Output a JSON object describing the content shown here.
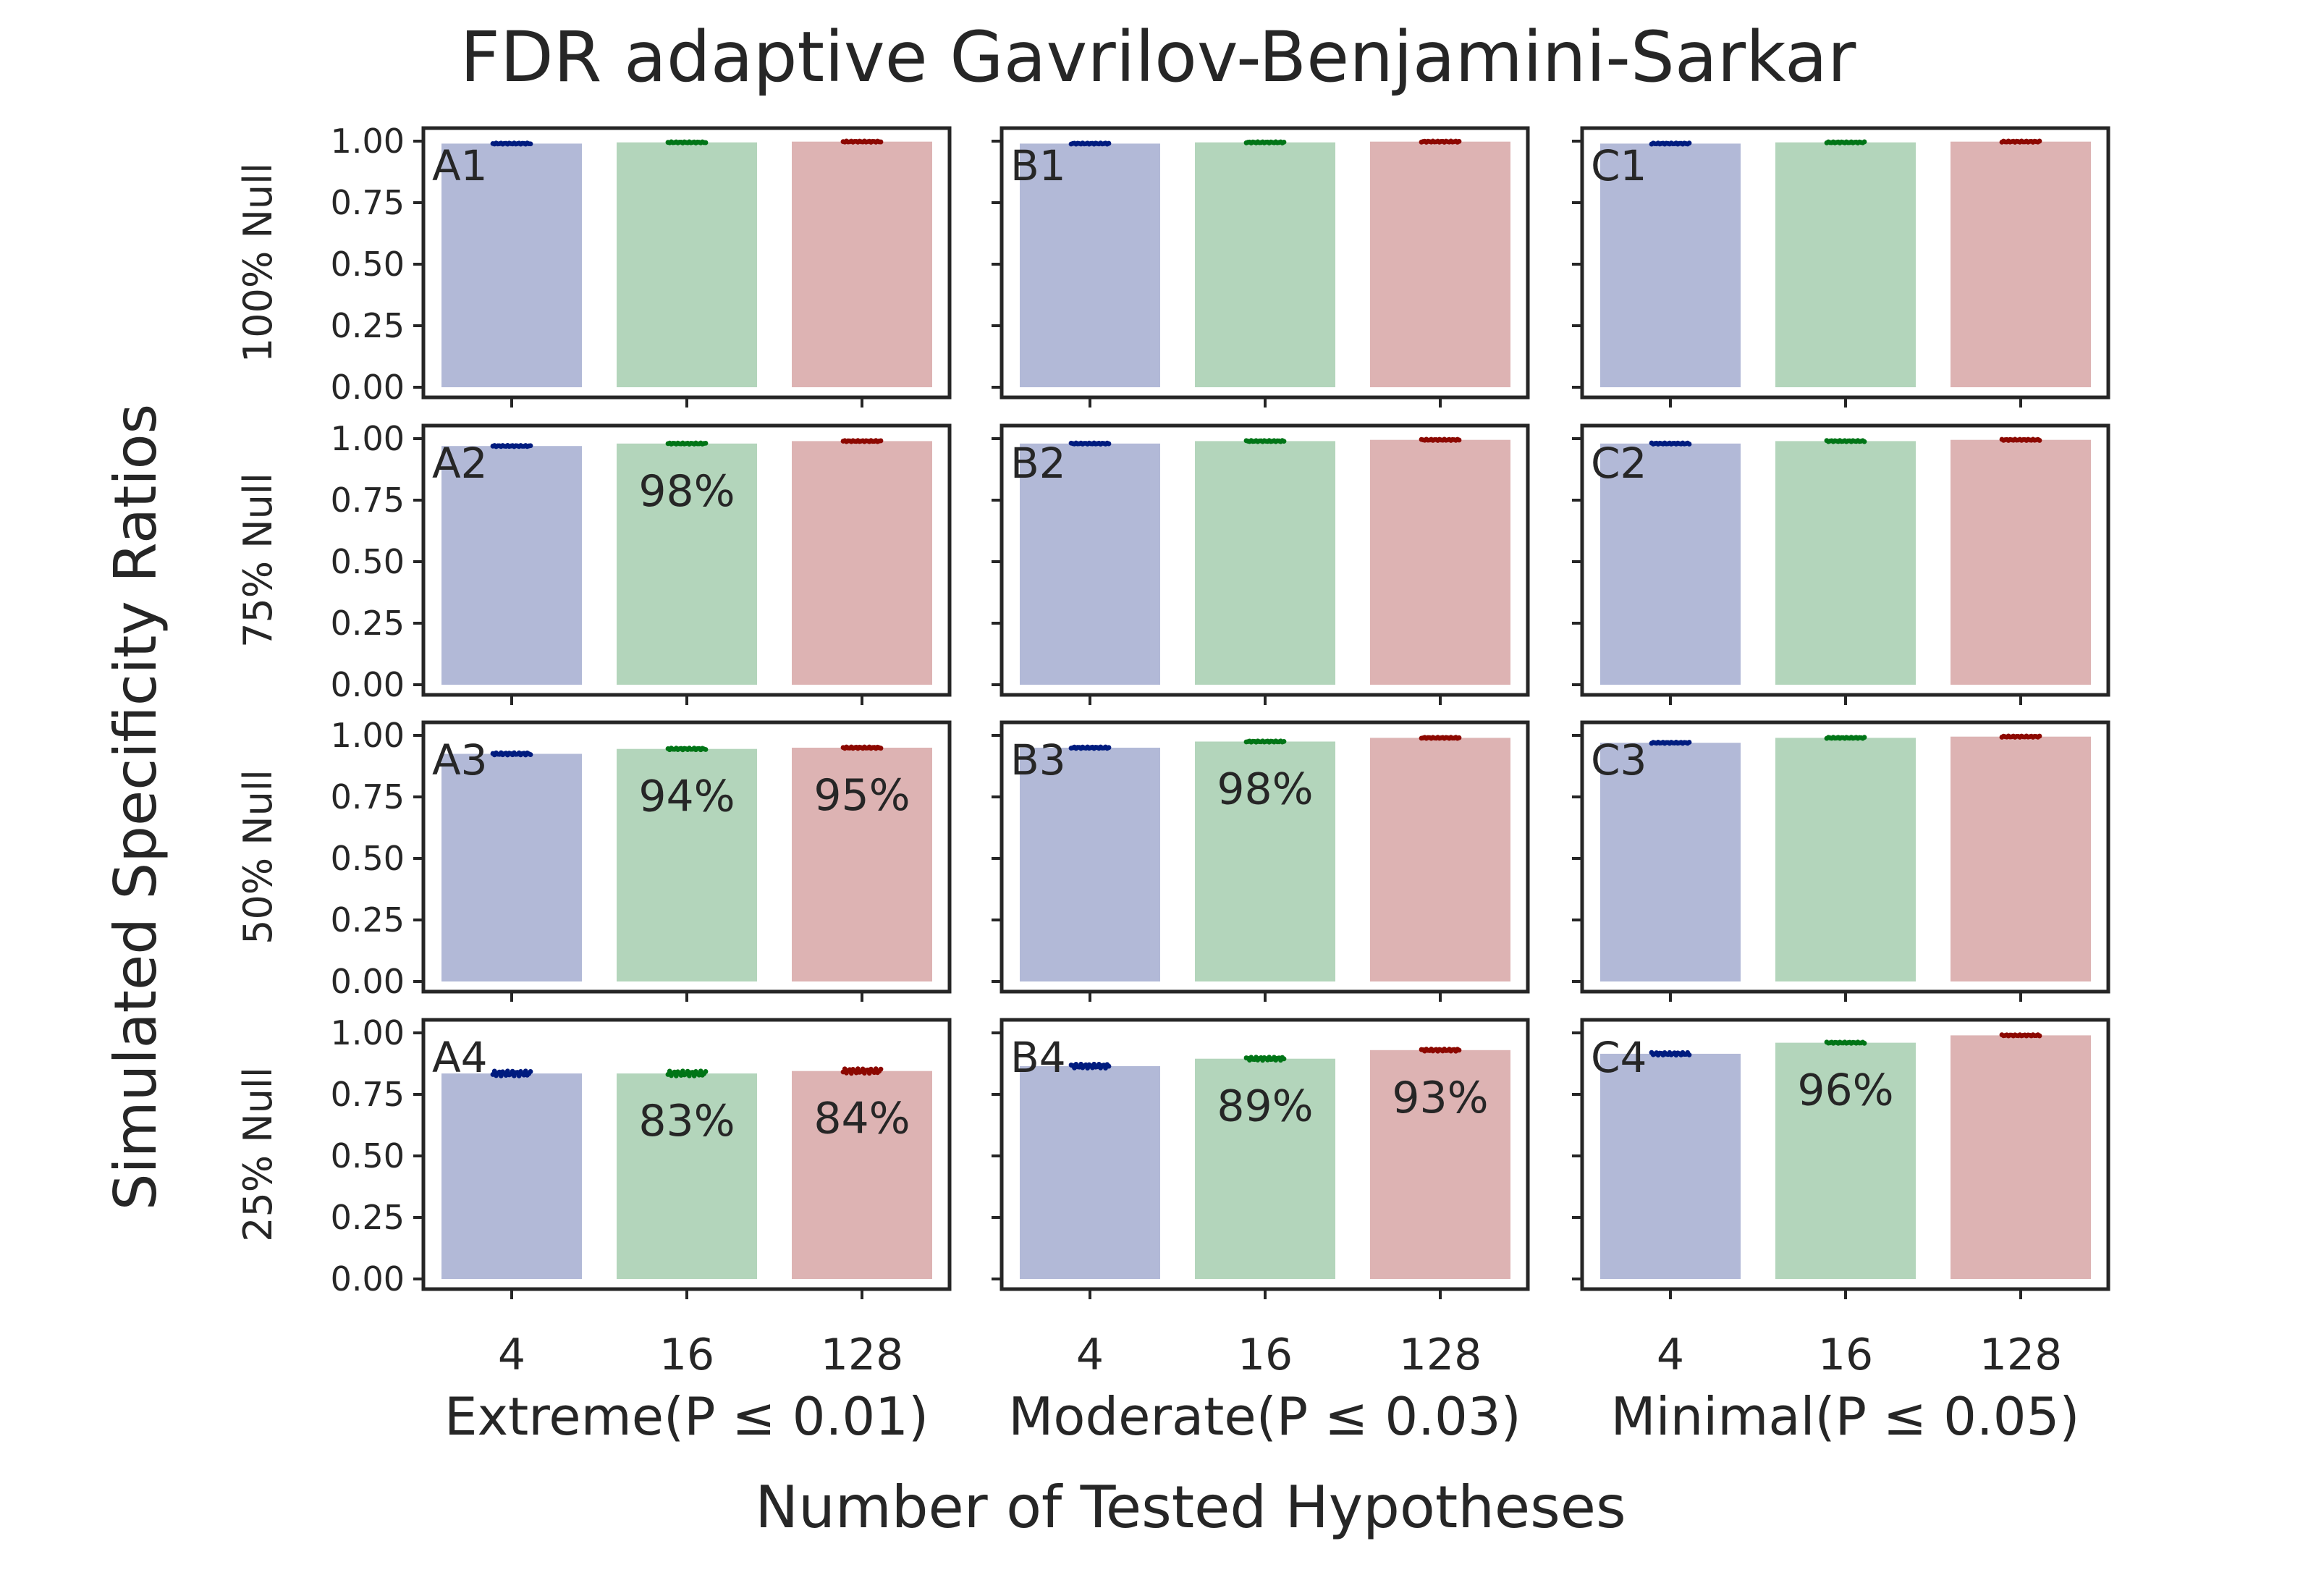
{
  "chart_data": {
    "type": "bar",
    "title": "FDR adaptive Gavrilov-Benjamini-Sarkar",
    "ylabel": "Simulated Specificity Ratios",
    "xlabel": "Number of Tested Hypotheses",
    "ylim": [
      0,
      1
    ],
    "yticks": [
      "0.00",
      "0.25",
      "0.50",
      "0.75",
      "1.00"
    ],
    "categories": [
      "4",
      "16",
      "128"
    ],
    "columns": [
      "Extreme(P ≤ 0.01)",
      "Moderate(P ≤ 0.03)",
      "Minimal(P ≤ 0.05)"
    ],
    "rows": [
      "100% Null",
      "75% Null",
      "50% Null",
      "25% Null"
    ],
    "colors": {
      "bars": [
        "#b2b9d7",
        "#b3d5bb",
        "#ddb3b3"
      ],
      "points": [
        "#001c7f",
        "#017517",
        "#8c0800"
      ],
      "frame": "#262626"
    },
    "panels": [
      {
        "label": "A1",
        "values": [
          0.99,
          0.995,
          0.998
        ],
        "annotations": [
          "",
          "",
          ""
        ]
      },
      {
        "label": "B1",
        "values": [
          0.99,
          0.995,
          0.998
        ],
        "annotations": [
          "",
          "",
          ""
        ]
      },
      {
        "label": "C1",
        "values": [
          0.99,
          0.995,
          0.998
        ],
        "annotations": [
          "",
          "",
          ""
        ]
      },
      {
        "label": "A2",
        "values": [
          0.97,
          0.98,
          0.99
        ],
        "annotations": [
          "",
          "98%",
          ""
        ]
      },
      {
        "label": "B2",
        "values": [
          0.98,
          0.99,
          0.995
        ],
        "annotations": [
          "",
          "",
          ""
        ]
      },
      {
        "label": "C2",
        "values": [
          0.98,
          0.99,
          0.995
        ],
        "annotations": [
          "",
          "",
          ""
        ]
      },
      {
        "label": "A3",
        "values": [
          0.925,
          0.945,
          0.95
        ],
        "annotations": [
          "",
          "94%",
          "95%"
        ]
      },
      {
        "label": "B3",
        "values": [
          0.95,
          0.975,
          0.99
        ],
        "annotations": [
          "",
          "98%",
          ""
        ]
      },
      {
        "label": "C3",
        "values": [
          0.97,
          0.99,
          0.995
        ],
        "annotations": [
          "",
          "",
          ""
        ]
      },
      {
        "label": "A4",
        "values": [
          0.835,
          0.835,
          0.845
        ],
        "annotations": [
          "",
          "83%",
          "84%"
        ]
      },
      {
        "label": "B4",
        "values": [
          0.865,
          0.895,
          0.93
        ],
        "annotations": [
          "",
          "89%",
          "93%"
        ]
      },
      {
        "label": "C4",
        "values": [
          0.915,
          0.96,
          0.99
        ],
        "annotations": [
          "",
          "96%",
          ""
        ]
      }
    ]
  }
}
